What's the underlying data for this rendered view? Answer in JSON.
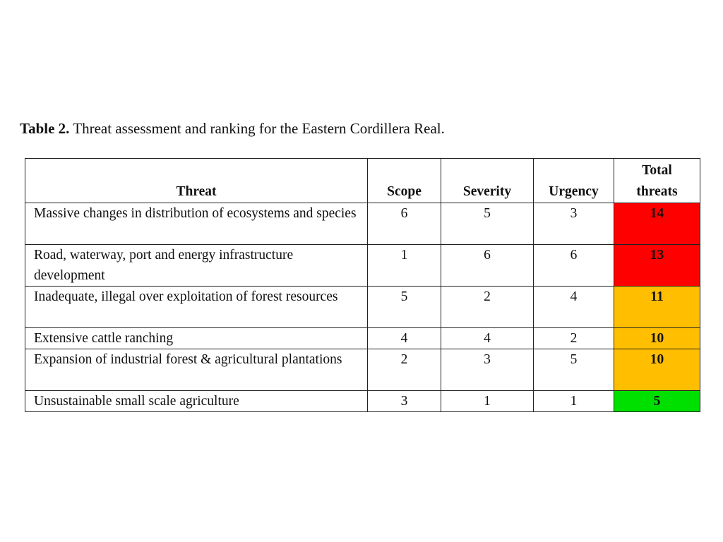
{
  "caption": {
    "label": "Table 2.",
    "text": " Threat assessment and ranking for the Eastern Cordillera Real."
  },
  "table": {
    "headers": {
      "threat": "Threat",
      "scope": "Scope",
      "severity": "Severity",
      "urgency": "Urgency",
      "total_line1": "Total",
      "total_line2": "threats"
    },
    "rows": [
      {
        "threat": "Massive changes in distribution of ecosystems and species",
        "scope": "6",
        "severity": "5",
        "urgency": "3",
        "total": "14",
        "color": "#ff0000"
      },
      {
        "threat": "Road, waterway, port and energy infrastructure development",
        "scope": "1",
        "severity": "6",
        "urgency": "6",
        "total": "13",
        "color": "#ff0000"
      },
      {
        "threat": "Inadequate, illegal over exploitation of forest resources",
        "scope": "5",
        "severity": "2",
        "urgency": "4",
        "total": "11",
        "color": "#ffbf00"
      },
      {
        "threat": "Extensive cattle ranching",
        "scope": "4",
        "severity": "4",
        "urgency": "2",
        "total": "10",
        "color": "#ffbf00"
      },
      {
        "threat": "Expansion of industrial forest & agricultural plantations",
        "scope": "2",
        "severity": "3",
        "urgency": "5",
        "total": "10",
        "color": "#ffbf00"
      },
      {
        "threat": "Unsustainable small scale agriculture",
        "scope": "3",
        "severity": "1",
        "urgency": "1",
        "total": "5",
        "color": "#00e000"
      }
    ]
  }
}
